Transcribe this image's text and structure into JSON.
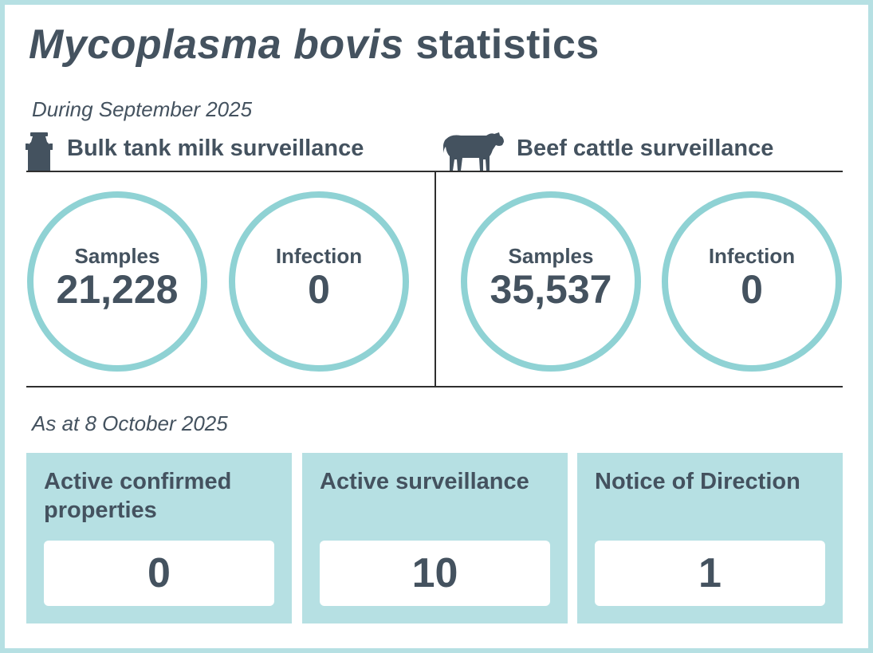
{
  "title": {
    "italic": "Mycoplasma bovis",
    "rest": " statistics"
  },
  "period1": "During September 2025",
  "sections": [
    {
      "heading": "Bulk tank milk surveillance",
      "icon": "milk-churn-icon",
      "stats": [
        {
          "label": "Samples",
          "value": "21,228"
        },
        {
          "label": "Infection",
          "value": "0"
        }
      ]
    },
    {
      "heading": "Beef cattle surveillance",
      "icon": "cow-icon",
      "stats": [
        {
          "label": "Samples",
          "value": "35,537"
        },
        {
          "label": "Infection",
          "value": "0"
        }
      ]
    }
  ],
  "period2": "As at 8 October 2025",
  "panels": [
    {
      "label": "Active confirmed properties",
      "value": "0"
    },
    {
      "label": "Active surveillance",
      "value": "10"
    },
    {
      "label": "Notice of Direction",
      "value": "1"
    }
  ],
  "colors": {
    "text": "#44525f",
    "ring": "#8fd2d4",
    "panel": "#b6e0e3"
  }
}
